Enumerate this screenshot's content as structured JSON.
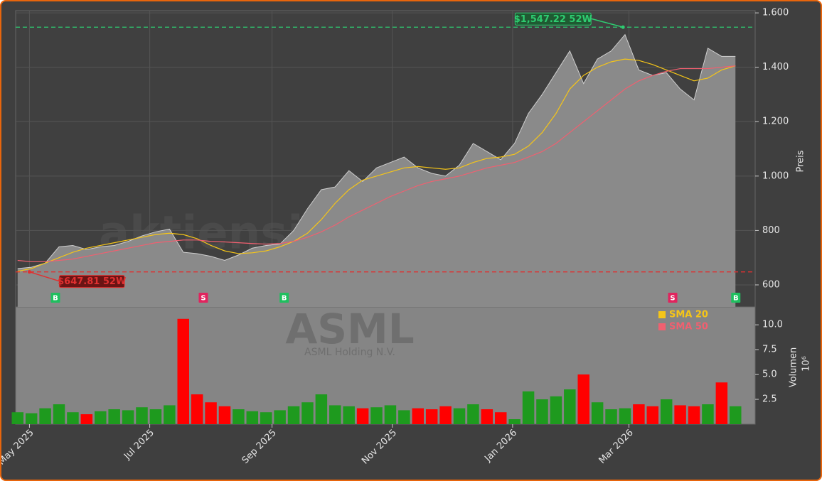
{
  "chart_data": [
    {
      "type": "line",
      "watermark": "aktiensignale.trade",
      "ylabel": "Preis",
      "color": "#8a8a8a",
      "xlim": [
        "2025-04-24",
        "2026-05-04"
      ],
      "xticks": [
        {
          "value": "2025-05-01",
          "label": "May 2025"
        },
        {
          "value": "2025-07-01",
          "label": "Jul 2025"
        },
        {
          "value": "2025-09-01",
          "label": "Sep 2025"
        },
        {
          "value": "2025-11-01",
          "label": "Nov 2025"
        },
        {
          "value": "2026-01-01",
          "label": "Jan 2026"
        },
        {
          "value": "2026-03-01",
          "label": "Mar 2026"
        }
      ],
      "ylim": [
        519,
        1608
      ],
      "yticks": [
        600,
        800,
        {
          "value": 1000,
          "label": "1.000"
        },
        {
          "value": 1200,
          "label": "1.200"
        },
        {
          "value": 1400,
          "label": "1.400"
        },
        {
          "value": 1600,
          "label": "1.600"
        }
      ],
      "grid": true,
      "x": [
        "2025-04-25",
        "2025-05-02",
        "2025-05-09",
        "2025-05-16",
        "2025-05-23",
        "2025-05-30",
        "2025-06-06",
        "2025-06-13",
        "2025-06-20",
        "2025-06-27",
        "2025-07-04",
        "2025-07-11",
        "2025-07-18",
        "2025-07-25",
        "2025-08-01",
        "2025-08-08",
        "2025-08-15",
        "2025-08-22",
        "2025-08-29",
        "2025-09-05",
        "2025-09-12",
        "2025-09-19",
        "2025-09-26",
        "2025-10-03",
        "2025-10-10",
        "2025-10-17",
        "2025-10-24",
        "2025-10-31",
        "2025-11-07",
        "2025-11-14",
        "2025-11-21",
        "2025-11-28",
        "2025-12-05",
        "2025-12-12",
        "2025-12-19",
        "2025-12-26",
        "2026-01-02",
        "2026-01-09",
        "2026-01-16",
        "2026-01-23",
        "2026-01-30",
        "2026-02-06",
        "2026-02-13",
        "2026-02-20",
        "2026-02-27",
        "2026-03-06",
        "2026-03-13",
        "2026-03-20",
        "2026-03-27",
        "2026-04-03",
        "2026-04-10",
        "2026-04-17",
        "2026-04-24"
      ],
      "values": [
        660,
        665,
        680,
        740,
        745,
        730,
        740,
        745,
        760,
        780,
        795,
        805,
        720,
        715,
        705,
        690,
        710,
        735,
        745,
        750,
        800,
        880,
        950,
        960,
        1020,
        980,
        1030,
        1050,
        1070,
        1030,
        1010,
        1000,
        1040,
        1120,
        1090,
        1060,
        1120,
        1230,
        1300,
        1380,
        1460,
        1340,
        1430,
        1460,
        1520,
        1390,
        1370,
        1380,
        1320,
        1280,
        1470,
        1440,
        1440
      ],
      "series": [
        {
          "name": "SMA 20",
          "color": "#f5c518",
          "values": [
            650,
            660,
            680,
            700,
            720,
            735,
            745,
            755,
            765,
            775,
            785,
            790,
            785,
            770,
            745,
            725,
            715,
            718,
            725,
            740,
            760,
            790,
            840,
            900,
            950,
            985,
            1000,
            1015,
            1030,
            1035,
            1030,
            1025,
            1030,
            1050,
            1065,
            1070,
            1080,
            1110,
            1160,
            1230,
            1320,
            1370,
            1400,
            1420,
            1430,
            1425,
            1410,
            1390,
            1370,
            1350,
            1360,
            1390,
            1405
          ]
        },
        {
          "name": "SMA 50",
          "color": "#f06070",
          "values": [
            690,
            685,
            685,
            690,
            695,
            705,
            715,
            725,
            735,
            745,
            755,
            760,
            765,
            765,
            760,
            758,
            755,
            752,
            750,
            752,
            760,
            775,
            795,
            820,
            850,
            875,
            900,
            925,
            945,
            965,
            980,
            990,
            1000,
            1015,
            1030,
            1040,
            1050,
            1070,
            1090,
            1120,
            1160,
            1200,
            1240,
            1280,
            1320,
            1350,
            1370,
            1385,
            1395,
            1395,
            1395,
            1400,
            1405
          ]
        }
      ],
      "annotations": [
        {
          "text": "$1,547.22 52W",
          "value": 1547.22,
          "x": "2026-02-26",
          "color": "#2ecc71"
        },
        {
          "text": "$647.81 52W",
          "value": 647.81,
          "x": "2025-05-01",
          "color": "#e03030"
        }
      ],
      "signals": [
        {
          "label": "B",
          "x": "2025-05-14"
        },
        {
          "label": "S",
          "x": "2025-07-28"
        },
        {
          "label": "B",
          "x": "2025-09-07"
        },
        {
          "label": "S",
          "x": "2026-03-23"
        },
        {
          "label": "B",
          "x": "2026-04-24"
        }
      ]
    },
    {
      "type": "bar",
      "title": "ASML",
      "subtitle": "ASML Holding N.V.",
      "ylabel": "Volumen",
      "exponent": "10⁶",
      "legend": "upper right",
      "up_color": "#1e9a1e",
      "down_color": "#ff0000",
      "ylim": [
        0,
        11.8
      ],
      "yticks": [
        2.5,
        {
          "value": 5,
          "label": "5.0"
        },
        7.5,
        {
          "value": 10,
          "label": "10.0"
        }
      ],
      "values": [
        1.2,
        1.1,
        1.6,
        2.0,
        1.2,
        1.0,
        1.3,
        1.5,
        1.4,
        1.7,
        1.5,
        1.9,
        10.6,
        3.0,
        2.2,
        1.8,
        1.5,
        1.3,
        1.2,
        1.4,
        1.8,
        2.2,
        3.0,
        1.9,
        1.8,
        1.6,
        1.7,
        1.9,
        1.4,
        1.6,
        1.5,
        1.8,
        1.6,
        2.0,
        1.5,
        1.2,
        0.5,
        3.3,
        2.5,
        2.8,
        3.5,
        5.0,
        2.2,
        1.5,
        1.6,
        2.0,
        1.8,
        2.5,
        1.9,
        1.8,
        2.0,
        4.2,
        1.8
      ]
    }
  ]
}
